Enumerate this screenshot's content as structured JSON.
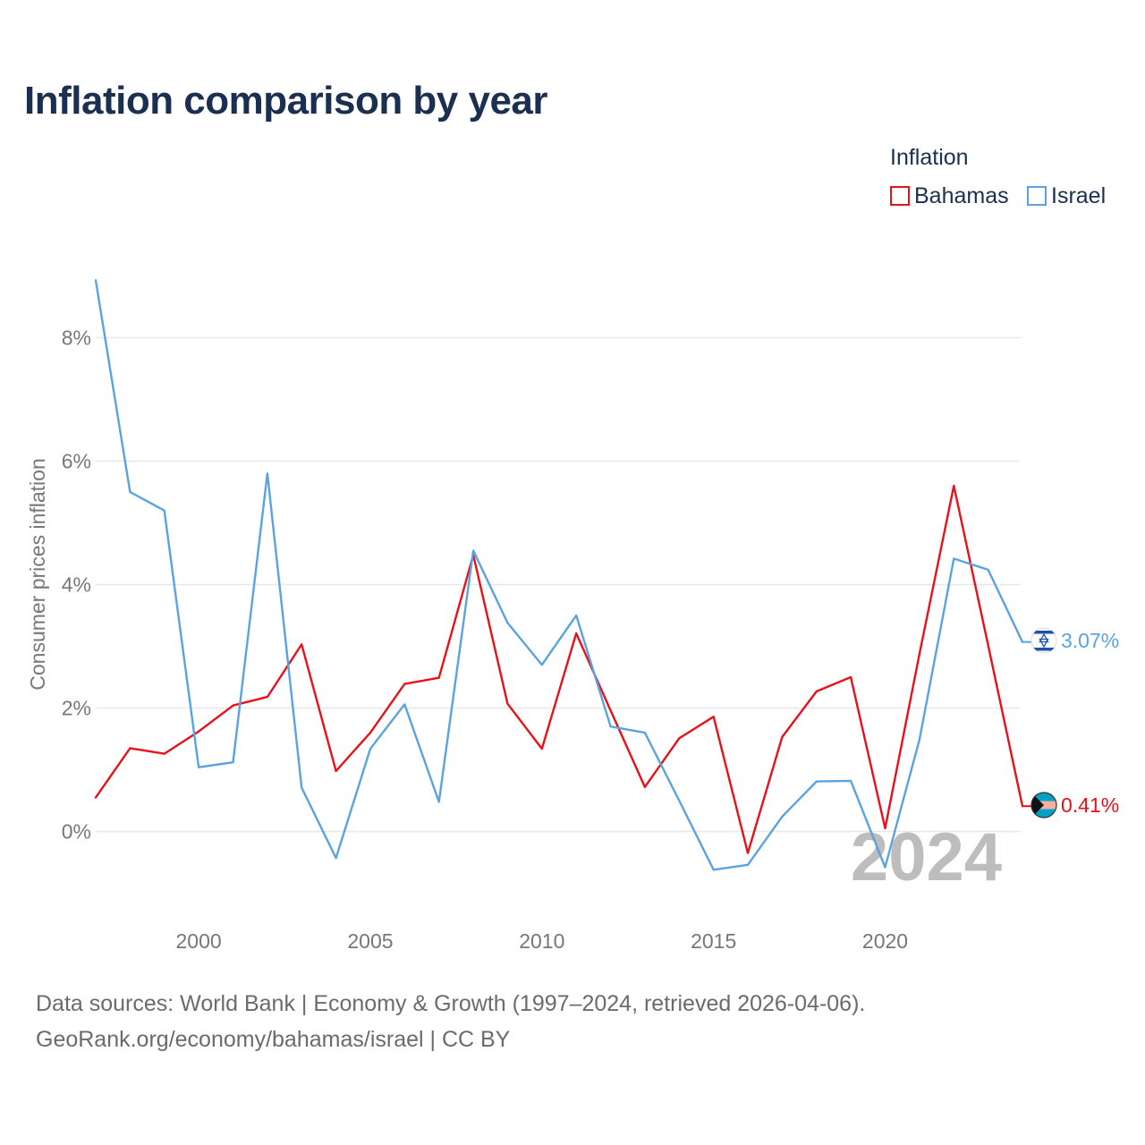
{
  "title": "Inflation comparison by year",
  "legend": {
    "title": "Inflation",
    "items": [
      {
        "label": "Bahamas",
        "color": "#e8111a"
      },
      {
        "label": "Israel",
        "color": "#5aa3e2"
      }
    ]
  },
  "footer": {
    "line1": "Data sources: World Bank | Economy & Growth (1997–2024, retrieved 2026-04-06).",
    "line2": "GeoRank.org/economy/bahamas/israel | CC BY"
  },
  "chart_data": {
    "type": "line",
    "title": "Inflation comparison by year",
    "xlabel": "",
    "ylabel": "Consumer prices inflation",
    "watermark": "2024",
    "x": [
      1997,
      1998,
      1999,
      2000,
      2001,
      2002,
      2003,
      2004,
      2005,
      2006,
      2007,
      2008,
      2009,
      2010,
      2011,
      2012,
      2013,
      2014,
      2015,
      2016,
      2017,
      2018,
      2019,
      2020,
      2021,
      2022,
      2023,
      2024
    ],
    "xlim": [
      1997,
      2024
    ],
    "ylim": [
      -1.2,
      9.0
    ],
    "x_ticks": [
      {
        "value": 2000,
        "label": "2000"
      },
      {
        "value": 2005,
        "label": "2005"
      },
      {
        "value": 2010,
        "label": "2010"
      },
      {
        "value": 2015,
        "label": "2015"
      },
      {
        "value": 2020,
        "label": "2020"
      }
    ],
    "y_ticks": [
      {
        "value": 0,
        "label": "0%"
      },
      {
        "value": 2,
        "label": "2%"
      },
      {
        "value": 4,
        "label": "4%"
      },
      {
        "value": 6,
        "label": "6%"
      },
      {
        "value": 8,
        "label": "8%"
      }
    ],
    "grid": true,
    "series": [
      {
        "name": "Bahamas",
        "color": "#e8111a",
        "end_label": "0.41%",
        "flag": "bahamas-flag-icon",
        "values": [
          0.55,
          1.35,
          1.26,
          1.62,
          2.04,
          2.18,
          3.03,
          0.98,
          1.6,
          2.39,
          2.49,
          4.48,
          2.07,
          1.34,
          3.21,
          1.96,
          0.72,
          1.51,
          1.86,
          -0.35,
          1.53,
          2.27,
          2.5,
          0.05,
          2.88,
          5.6,
          3.02,
          0.41
        ]
      },
      {
        "name": "Israel",
        "color": "#5aa3e2",
        "end_label": "3.07%",
        "flag": "israel-flag-icon",
        "values": [
          8.93,
          5.5,
          5.2,
          1.04,
          1.12,
          5.8,
          0.71,
          -0.43,
          1.34,
          2.06,
          0.48,
          4.55,
          3.38,
          2.7,
          3.5,
          1.7,
          1.6,
          0.5,
          -0.62,
          -0.54,
          0.24,
          0.81,
          0.82,
          -0.58,
          1.49,
          4.42,
          4.24,
          3.07
        ]
      }
    ]
  }
}
